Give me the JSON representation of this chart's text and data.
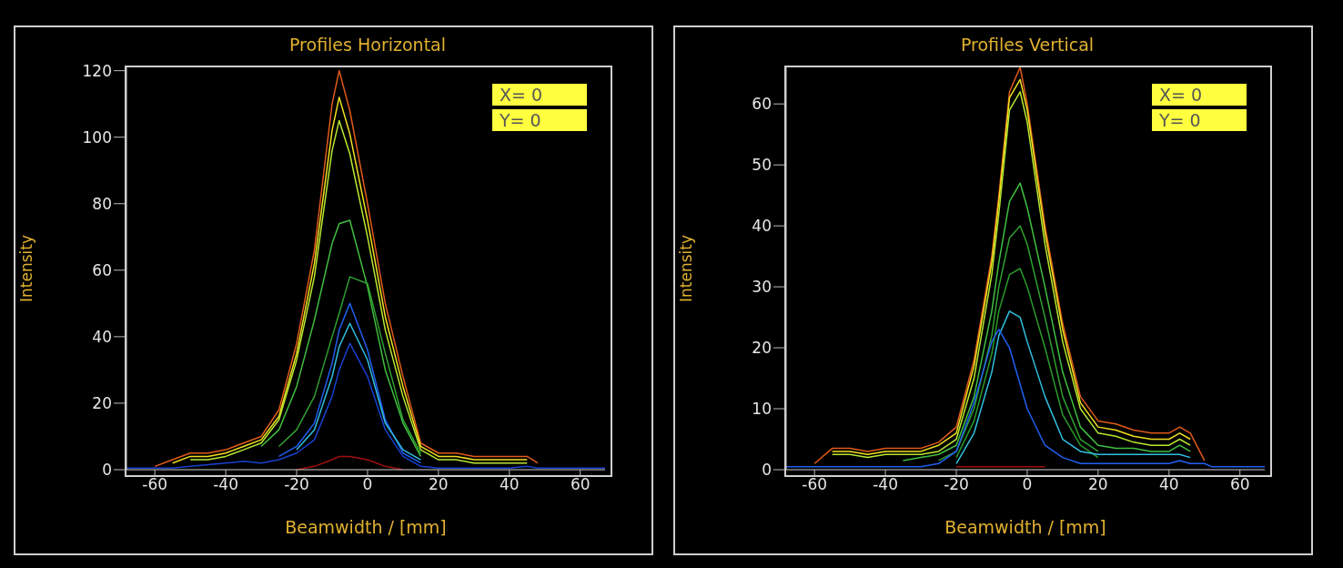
{
  "chart_data": [
    {
      "type": "line",
      "title": "Profiles Horizontal",
      "xlabel": "Beamwidth / [mm]",
      "ylabel": "Intensity",
      "marker": "none",
      "x": [
        -68,
        -60,
        -55,
        -50,
        -45,
        -40,
        -35,
        -30,
        -25,
        -20,
        -15,
        -10,
        -8,
        -5,
        0,
        5,
        10,
        15,
        20,
        25,
        30,
        35,
        40,
        45,
        48,
        52,
        60,
        67
      ],
      "xlim": [
        -68,
        67
      ],
      "xticks": [
        -60,
        -40,
        -20,
        0,
        20,
        40,
        60
      ],
      "ylim": [
        0,
        121
      ],
      "yticks": [
        0,
        20,
        40,
        60,
        80,
        100,
        120
      ],
      "annotations": [
        "X= 0",
        "Y= 0"
      ],
      "series": [
        {
          "color": "#e05a1a",
          "values": [
            null,
            1,
            3,
            5,
            5,
            6,
            8,
            10,
            18,
            38,
            66,
            110,
            120,
            108,
            80,
            50,
            28,
            8,
            5,
            5,
            4,
            4,
            4,
            4,
            2,
            null,
            null,
            null
          ]
        },
        {
          "color": "#f0e020",
          "values": [
            null,
            null,
            2,
            4,
            4,
            5,
            7,
            9,
            16,
            35,
            62,
            102,
            112,
            101,
            75,
            46,
            25,
            7,
            4,
            4,
            3,
            3,
            3,
            3,
            null,
            null,
            null,
            null
          ]
        },
        {
          "color": "#b8e830",
          "values": [
            null,
            null,
            null,
            3,
            3,
            4,
            6,
            8,
            15,
            33,
            58,
            96,
            105,
            95,
            70,
            42,
            22,
            6,
            3,
            3,
            2,
            2,
            2,
            2,
            null,
            null,
            null,
            null
          ]
        },
        {
          "color": "#40c040",
          "values": [
            null,
            null,
            null,
            null,
            null,
            null,
            null,
            7,
            12,
            25,
            45,
            68,
            74,
            75,
            55,
            30,
            14,
            4,
            null,
            null,
            null,
            null,
            null,
            null,
            null,
            null,
            null,
            null
          ]
        },
        {
          "color": "#30a030",
          "values": [
            null,
            null,
            null,
            null,
            null,
            null,
            null,
            null,
            7,
            12,
            22,
            40,
            47,
            58,
            56,
            35,
            15,
            5,
            null,
            null,
            null,
            null,
            null,
            null,
            null,
            null,
            null,
            null
          ]
        },
        {
          "color": "#2060f0",
          "values": [
            null,
            null,
            null,
            null,
            null,
            null,
            null,
            null,
            4,
            7,
            14,
            32,
            42,
            50,
            36,
            15,
            5,
            2,
            null,
            null,
            null,
            null,
            null,
            null,
            null,
            null,
            null,
            null
          ]
        },
        {
          "color": "#30c0e0",
          "values": [
            null,
            null,
            null,
            null,
            null,
            null,
            null,
            null,
            null,
            6,
            12,
            28,
            37,
            44,
            33,
            14,
            6,
            3,
            null,
            null,
            null,
            null,
            null,
            null,
            null,
            null,
            null,
            null
          ]
        },
        {
          "color": "#1840d0",
          "values": [
            0.5,
            0.5,
            0.5,
            1,
            1.5,
            2,
            2.5,
            2,
            3,
            5,
            9,
            22,
            30,
            38,
            28,
            12,
            4,
            1,
            0.5,
            0.5,
            0.5,
            0.5,
            0.5,
            1,
            0.5,
            0.5,
            0.5,
            0.5
          ]
        },
        {
          "color": "#a01010",
          "values": [
            null,
            null,
            null,
            null,
            null,
            null,
            null,
            null,
            null,
            0,
            1,
            3,
            4,
            4,
            3,
            1,
            0,
            null,
            null,
            null,
            null,
            null,
            null,
            null,
            null,
            null,
            null,
            null
          ]
        }
      ]
    },
    {
      "type": "line",
      "title": "Profiles Vertical",
      "xlabel": "Beamwidth / [mm]",
      "ylabel": "Intensity",
      "marker": "none",
      "x": [
        -68,
        -60,
        -55,
        -50,
        -45,
        -40,
        -35,
        -30,
        -25,
        -20,
        -15,
        -10,
        -8,
        -5,
        -2,
        0,
        5,
        10,
        15,
        20,
        25,
        30,
        35,
        40,
        43,
        46,
        50,
        52,
        60,
        67
      ],
      "xlim": [
        -68,
        67
      ],
      "xticks": [
        -60,
        -40,
        -20,
        0,
        20,
        40,
        60
      ],
      "ylim": [
        0,
        66
      ],
      "yticks": [
        0,
        10,
        20,
        30,
        40,
        50,
        60
      ],
      "annotations": [
        "X= 0",
        "Y= 0"
      ],
      "series": [
        {
          "color": "#e05a1a",
          "values": [
            null,
            1,
            3.5,
            3.5,
            3,
            3.5,
            3.5,
            3.5,
            4.5,
            7,
            18,
            35,
            45,
            62,
            66,
            60,
            40,
            24,
            12,
            8,
            7.5,
            6.5,
            6,
            6,
            7,
            6,
            1.5,
            null,
            null,
            null
          ]
        },
        {
          "color": "#f0e020",
          "values": [
            null,
            null,
            3,
            3,
            2.5,
            3,
            3,
            3,
            4,
            6,
            17,
            34,
            44,
            61,
            64,
            59,
            39,
            23,
            11,
            7,
            6.5,
            5.5,
            5,
            5,
            6,
            5,
            null,
            null,
            null,
            null
          ]
        },
        {
          "color": "#b8e830",
          "values": [
            null,
            null,
            2.5,
            2.5,
            2,
            2.5,
            2.5,
            2.5,
            3,
            5,
            15,
            32,
            42,
            59,
            62,
            57,
            37,
            21,
            10,
            6,
            5.5,
            4.5,
            4,
            4,
            5,
            4,
            null,
            null,
            null,
            null
          ]
        },
        {
          "color": "#40c040",
          "values": [
            null,
            null,
            null,
            null,
            null,
            null,
            1.5,
            2,
            2.5,
            4,
            12,
            26,
            34,
            44,
            47,
            43,
            30,
            16,
            7,
            4,
            3.5,
            3.5,
            3,
            3,
            4,
            3,
            null,
            null,
            null,
            null
          ]
        },
        {
          "color": "#30a030",
          "values": [
            null,
            null,
            null,
            null,
            null,
            null,
            null,
            null,
            1.5,
            3,
            10,
            22,
            30,
            38,
            40,
            37,
            25,
            12,
            5,
            3,
            null,
            null,
            null,
            null,
            null,
            null,
            null,
            null,
            null,
            null
          ]
        },
        {
          "color": "#2a9a2a",
          "values": [
            null,
            null,
            null,
            null,
            null,
            null,
            null,
            null,
            null,
            2,
            8,
            19,
            26,
            32,
            33,
            30,
            20,
            9,
            4,
            2,
            null,
            null,
            null,
            null,
            null,
            null,
            null,
            null,
            null,
            null
          ]
        },
        {
          "color": "#30c0e0",
          "values": [
            null,
            null,
            null,
            null,
            null,
            null,
            null,
            null,
            null,
            1,
            6,
            16,
            22,
            26,
            25,
            21,
            12,
            5,
            3,
            2.5,
            2.5,
            2.5,
            2.5,
            2.5,
            2.5,
            2,
            null,
            null,
            null,
            null
          ]
        },
        {
          "color": "#2060f0",
          "values": [
            0.5,
            0.5,
            0.5,
            0.5,
            0.5,
            0.5,
            0.5,
            0.5,
            1,
            3,
            11,
            21,
            23,
            20,
            14,
            10,
            4,
            2,
            1,
            1,
            1,
            1,
            1,
            1,
            1.5,
            1,
            1,
            0.5,
            0.5,
            0.5
          ]
        },
        {
          "color": "#a01010",
          "values": [
            null,
            null,
            null,
            null,
            null,
            null,
            null,
            null,
            null,
            0.5,
            0.5,
            0.5,
            0.5,
            0.5,
            0.5,
            0.5,
            0.5,
            null,
            null,
            null,
            null,
            null,
            null,
            null,
            null,
            null,
            null,
            null,
            null,
            null
          ]
        }
      ]
    }
  ]
}
